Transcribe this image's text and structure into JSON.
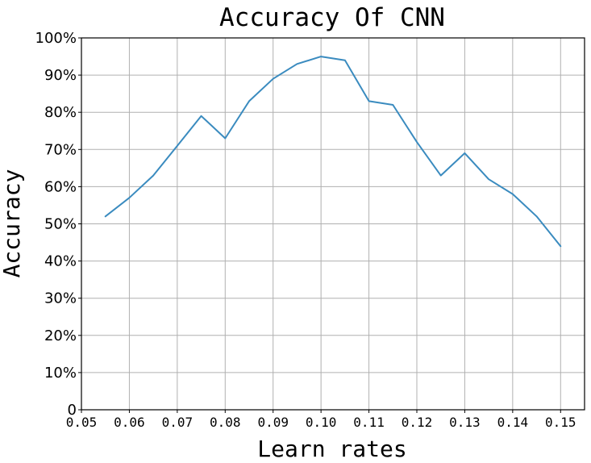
{
  "chart_data": {
    "type": "line",
    "title": "Accuracy Of CNN",
    "xlabel": "Learn rates",
    "ylabel": "Accuracy",
    "xlim": [
      0.05,
      0.155
    ],
    "ylim": [
      0,
      100
    ],
    "grid": true,
    "x_ticks": [
      "0.05",
      "0.06",
      "0.07",
      "0.08",
      "0.09",
      "0.10",
      "0.11",
      "0.12",
      "0.13",
      "0.14",
      "0.15"
    ],
    "x_tick_values": [
      0.05,
      0.06,
      0.07,
      0.08,
      0.09,
      0.1,
      0.11,
      0.12,
      0.13,
      0.14,
      0.15
    ],
    "y_ticks": [
      "0",
      "10%",
      "20%",
      "30%",
      "40%",
      "50%",
      "60%",
      "70%",
      "80%",
      "90%",
      "100%"
    ],
    "y_tick_values": [
      0,
      10,
      20,
      30,
      40,
      50,
      60,
      70,
      80,
      90,
      100
    ],
    "series": [
      {
        "color": "#3a8bbf",
        "x": [
          0.055,
          0.06,
          0.065,
          0.07,
          0.075,
          0.08,
          0.085,
          0.09,
          0.095,
          0.1,
          0.105,
          0.11,
          0.115,
          0.12,
          0.125,
          0.13,
          0.135,
          0.14,
          0.145,
          0.15
        ],
        "values": [
          52,
          57,
          63,
          71,
          79,
          73,
          83,
          89,
          93,
          95,
          94,
          83,
          82,
          72,
          63,
          69,
          62,
          58,
          52,
          44
        ]
      }
    ]
  }
}
